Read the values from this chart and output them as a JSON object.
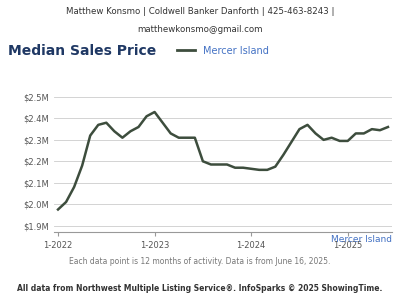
{
  "title": "Median Sales Price",
  "header_line1": "Matthew Konsmo | Coldwell Banker Danforth | 425-463-8243 |",
  "header_line2": "matthewkonsmo@gmail.com",
  "footer_line1": "Each data point is 12 months of activity. Data is from June 16, 2025.",
  "footer_line2": "All data from Northwest Multiple Listing Service®. InfoSparks © 2025 ShowingTime.",
  "legend_label": "Mercer Island",
  "watermark_label": "Mercer Island",
  "line_color": "#3d4d3d",
  "legend_color": "#4472c4",
  "title_color": "#1f3864",
  "header_bg": "#e8e8e8",
  "plot_bg": "#ffffff",
  "grid_color": "#cccccc",
  "ytick_labels": [
    "$1.9M",
    "$2.0M",
    "$2.1M",
    "$2.2M",
    "$2.3M",
    "$2.4M",
    "$2.5M"
  ],
  "ytick_values": [
    1900000,
    2000000,
    2100000,
    2200000,
    2300000,
    2400000,
    2500000
  ],
  "ylim": [
    1870000,
    2570000
  ],
  "xtick_labels": [
    "1-2022",
    "1-2023",
    "1-2024",
    "1-2025"
  ],
  "x_values": [
    0,
    1,
    2,
    3,
    4,
    5,
    6,
    7,
    8,
    9,
    10,
    11,
    12,
    13,
    14,
    15,
    16,
    17,
    18,
    19,
    20,
    21,
    22,
    23,
    24,
    25,
    26,
    27,
    28,
    29,
    30,
    31,
    32,
    33,
    34,
    35,
    36,
    37,
    38,
    39,
    40,
    41
  ],
  "y_values": [
    1975000,
    2010000,
    2080000,
    2180000,
    2320000,
    2370000,
    2380000,
    2340000,
    2310000,
    2340000,
    2360000,
    2410000,
    2430000,
    2380000,
    2330000,
    2310000,
    2310000,
    2310000,
    2200000,
    2185000,
    2185000,
    2185000,
    2170000,
    2170000,
    2165000,
    2160000,
    2160000,
    2175000,
    2230000,
    2290000,
    2350000,
    2370000,
    2330000,
    2300000,
    2310000,
    2295000,
    2295000,
    2330000,
    2330000,
    2350000,
    2345000,
    2360000
  ],
  "xtick_positions": [
    0,
    12,
    24,
    36
  ]
}
